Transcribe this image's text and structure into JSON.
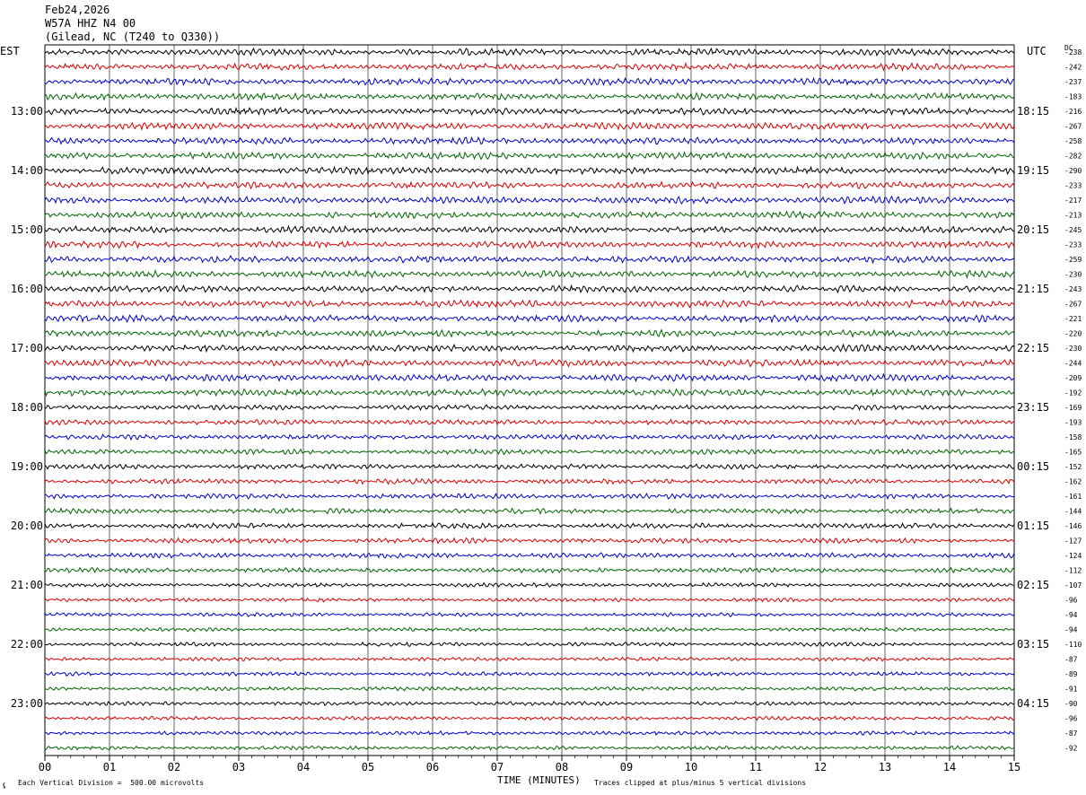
{
  "header": {
    "date": "Feb24,2026",
    "station": "W57A HHZ N4 00",
    "location": "(Gilead, NC (T240 to Q330))"
  },
  "left_tz": "EST",
  "right_tz": "UTC",
  "dc_label": "DC",
  "chart_data": {
    "type": "helicorder",
    "title": "",
    "xlabel": "TIME (MINUTES)",
    "x_ticks": [
      "00",
      "01",
      "02",
      "03",
      "04",
      "05",
      "06",
      "07",
      "08",
      "09",
      "10",
      "11",
      "12",
      "13",
      "14",
      "15"
    ],
    "xlim": [
      0,
      15
    ],
    "left_hour_labels": [
      "13:00",
      "14:00",
      "15:00",
      "16:00",
      "17:00",
      "18:00",
      "19:00",
      "20:00",
      "21:00",
      "22:00",
      "23:00"
    ],
    "right_hour_labels": [
      "18:15",
      "19:15",
      "20:15",
      "21:15",
      "22:15",
      "23:15",
      "00:15",
      "01:15",
      "02:15",
      "03:15",
      "04:15"
    ],
    "trace_colors": [
      "#000000",
      "#dd0000",
      "#0000cc",
      "#006600"
    ],
    "trace_count": 48,
    "dc_offsets": [
      "-238",
      "-242",
      "-237",
      "-183",
      "-216",
      "-267",
      "-258",
      "-282",
      "-290",
      "-233",
      "-217",
      "-213",
      "-245",
      "-233",
      "-259",
      "-230",
      "-243",
      "-267",
      "-221",
      "-220",
      "-230",
      "-244",
      "-209",
      "-192",
      "-169",
      "-193",
      "-158",
      "-165",
      "-152",
      "-162",
      "-161",
      "-144",
      "-146",
      "-127",
      "-124",
      "-112",
      "-107",
      "-96",
      "-94",
      "-94",
      "-110",
      "-87",
      "-89",
      "-91",
      "-90",
      "-96",
      "-87",
      "-92"
    ],
    "grid": true
  },
  "footer": {
    "scale_note": "Each Vertical Division =  500.00 microvolts",
    "clip_note": "Traces clipped at plus/minus 5 vertical divisions"
  }
}
